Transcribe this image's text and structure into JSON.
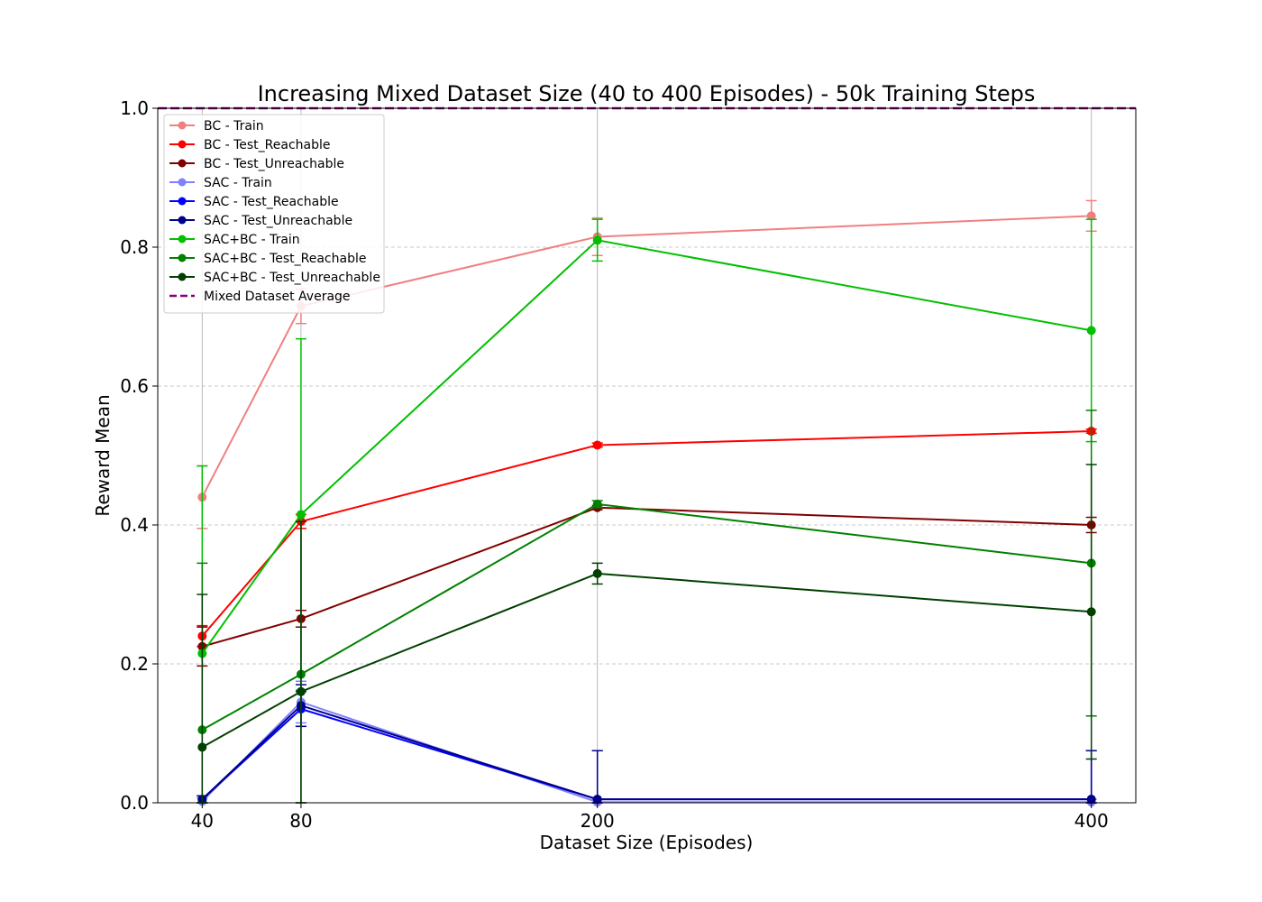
{
  "chart_data": {
    "type": "line",
    "title": "Increasing Mixed Dataset Size (40 to 400 Episodes) - 50k Training Steps",
    "xlabel": "Dataset Size (Episodes)",
    "ylabel": "Reward Mean",
    "x": [
      40,
      80,
      200,
      400
    ],
    "x_ticks": [
      "40",
      "80",
      "200",
      "400"
    ],
    "xlim": [
      22,
      418
    ],
    "ylim": [
      0.0,
      1.0
    ],
    "y_ticks": [
      "0.0",
      "0.2",
      "0.4",
      "0.6",
      "0.8",
      "1.0"
    ],
    "grid": "horizontal dashed (y) and vertical at x ticks",
    "legend_position": "upper-left",
    "series": [
      {
        "name": "BC - Train",
        "color": "#f08080",
        "values": [
          0.44,
          0.715,
          0.815,
          0.845
        ],
        "errors": [
          0.045,
          0.025,
          0.027,
          0.022
        ]
      },
      {
        "name": "BC - Test_Reachable",
        "color": "#ff0000",
        "values": [
          0.24,
          0.405,
          0.515,
          0.535
        ],
        "errors": [
          0.015,
          0.01,
          0.003,
          0.003
        ]
      },
      {
        "name": "BC - Test_Unreachable",
        "color": "#800000",
        "values": [
          0.225,
          0.265,
          0.425,
          0.4
        ],
        "errors": [
          0.028,
          0.012,
          0.003,
          0.011
        ]
      },
      {
        "name": "SAC - Train",
        "color": "#8080ff",
        "values": [
          0.002,
          0.145,
          0.001,
          0.001
        ],
        "errors": [
          0.005,
          0.03,
          0.004,
          0.004
        ]
      },
      {
        "name": "SAC - Test_Reachable",
        "color": "#0000ff",
        "values": [
          0.005,
          0.135,
          0.005,
          0.005
        ],
        "errors": [
          0.005,
          0.025,
          0.07,
          0.07
        ]
      },
      {
        "name": "SAC - Test_Unreachable",
        "color": "#00008b",
        "values": [
          0.005,
          0.14,
          0.005,
          0.005
        ],
        "errors": [
          0.005,
          0.03,
          0.07,
          0.07
        ]
      },
      {
        "name": "SAC+BC - Train",
        "color": "#00c000",
        "values": [
          0.215,
          0.415,
          0.81,
          0.68
        ],
        "errors": [
          0.27,
          0.253,
          0.03,
          0.16
        ]
      },
      {
        "name": "SAC+BC - Test_Reachable",
        "color": "#008000",
        "values": [
          0.105,
          0.185,
          0.43,
          0.345
        ],
        "errors": [
          0.24,
          0.22,
          0.005,
          0.22
        ]
      },
      {
        "name": "SAC+BC - Test_Unreachable",
        "color": "#004000",
        "values": [
          0.08,
          0.16,
          0.33,
          0.275
        ],
        "errors": [
          0.22,
          0.245,
          0.015,
          0.212
        ]
      }
    ],
    "reference_line": {
      "name": "Mixed Dataset Average",
      "value": 1.0,
      "color": "#800080",
      "style": "dashed"
    }
  }
}
